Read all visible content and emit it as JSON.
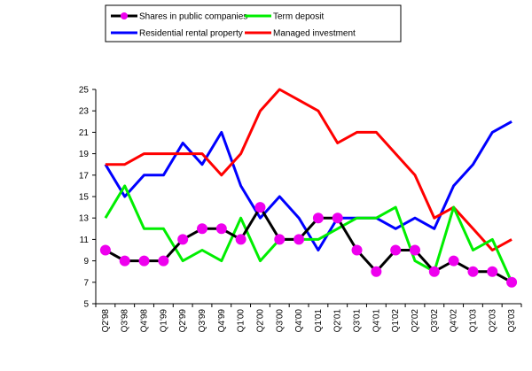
{
  "chart_data": {
    "type": "line",
    "title": "",
    "xlabel": "",
    "ylabel": "",
    "categories": [
      "Q2'98",
      "Q3'98",
      "Q4'98",
      "Q1'99",
      "Q2'99",
      "Q3'99",
      "Q4'99",
      "Q1'00",
      "Q2'00",
      "Q3'00",
      "Q4'00",
      "Q1'01",
      "Q2'01",
      "Q3'01",
      "Q4'01",
      "Q1'02",
      "Q2'02",
      "Q3'02",
      "Q4'02",
      "Q1'03",
      "Q2'03",
      "Q3'03"
    ],
    "ylim": [
      5,
      25
    ],
    "yticks": [
      5,
      7,
      9,
      11,
      13,
      15,
      17,
      19,
      21,
      23,
      25
    ],
    "legend_position": "top",
    "grid": false,
    "series": [
      {
        "name": "Shares in public companies",
        "color": "#000000",
        "marker_color": "#ee00ee",
        "values": [
          10,
          9,
          9,
          9,
          11,
          12,
          12,
          11,
          14,
          11,
          11,
          13,
          13,
          10,
          8,
          10,
          10,
          8,
          9,
          8,
          8,
          7
        ]
      },
      {
        "name": "Term deposit",
        "color": "#00ee00",
        "values": [
          13,
          16,
          12,
          12,
          9,
          10,
          9,
          13,
          9,
          11,
          11,
          11,
          12,
          13,
          13,
          14,
          9,
          8,
          14,
          10,
          11,
          7
        ]
      },
      {
        "name": "Residential rental property",
        "color": "#0000ff",
        "values": [
          18,
          15,
          17,
          17,
          20,
          18,
          21,
          16,
          13,
          15,
          13,
          10,
          13,
          13,
          13,
          12,
          13,
          12,
          16,
          18,
          21,
          22
        ]
      },
      {
        "name": "Managed investment",
        "color": "#ff0000",
        "values": [
          18,
          18,
          19,
          19,
          19,
          19,
          17,
          19,
          23,
          25,
          24,
          23,
          20,
          21,
          21,
          19,
          17,
          13,
          14,
          12,
          10,
          11
        ]
      }
    ]
  }
}
